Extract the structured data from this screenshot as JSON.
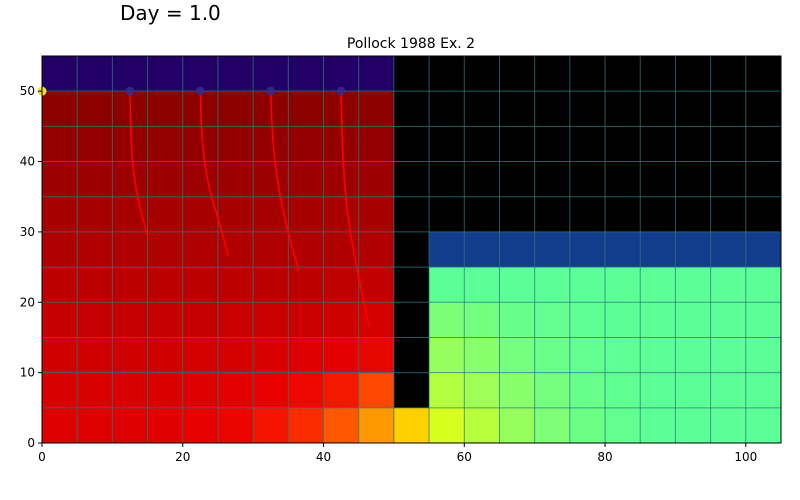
{
  "chart_data": {
    "type": "heatmap",
    "suptitle": "Day = 1.0",
    "title": "Pollock 1988 Ex. 2",
    "xlabel": "",
    "ylabel": "",
    "xlim": [
      0,
      105
    ],
    "ylim": [
      0,
      55
    ],
    "xticks": [
      0,
      20,
      40,
      60,
      80,
      100
    ],
    "yticks": [
      0,
      10,
      20,
      30,
      40,
      50
    ],
    "cell_size": 5,
    "grid": true,
    "grid_color": "#2a7a80",
    "colors": {
      "inactive": "#000000",
      "top_left_layer": "#220066",
      "right_layer": "#143c8c",
      "pathline": "#ff0000",
      "start_marker": "#3a2a8a",
      "source_marker": "#f0e040"
    },
    "rows_top_to_bottom": [
      [
        "#220066",
        "#220066",
        "#220066",
        "#220066",
        "#220066",
        "#220066",
        "#220066",
        "#220066",
        "#220066",
        "#220066",
        "#000000",
        "#000000",
        "#000000",
        "#000000",
        "#000000",
        "#000000",
        "#000000",
        "#000000",
        "#000000",
        "#000000",
        "#000000"
      ],
      [
        "#8c0000",
        "#8c0000",
        "#8c0000",
        "#8c0000",
        "#8c0000",
        "#8c0000",
        "#8c0000",
        "#8c0000",
        "#8c0000",
        "#8c0000",
        "#000000",
        "#000000",
        "#000000",
        "#000000",
        "#000000",
        "#000000",
        "#000000",
        "#000000",
        "#000000",
        "#000000",
        "#000000"
      ],
      [
        "#940000",
        "#940000",
        "#940000",
        "#940000",
        "#940000",
        "#940000",
        "#940000",
        "#940000",
        "#940000",
        "#940000",
        "#000000",
        "#000000",
        "#000000",
        "#000000",
        "#000000",
        "#000000",
        "#000000",
        "#000000",
        "#000000",
        "#000000",
        "#000000"
      ],
      [
        "#9c0000",
        "#9c0000",
        "#9c0000",
        "#9c0000",
        "#9c0000",
        "#9c0000",
        "#9c0000",
        "#9c0000",
        "#9c0000",
        "#9c0000",
        "#000000",
        "#000000",
        "#000000",
        "#000000",
        "#000000",
        "#000000",
        "#000000",
        "#000000",
        "#000000",
        "#000000",
        "#000000"
      ],
      [
        "#a60000",
        "#a60000",
        "#a60000",
        "#a60000",
        "#a60000",
        "#a60000",
        "#a60000",
        "#a60000",
        "#a60000",
        "#a60000",
        "#000000",
        "#000000",
        "#000000",
        "#000000",
        "#000000",
        "#000000",
        "#000000",
        "#000000",
        "#000000",
        "#000000",
        "#000000"
      ],
      [
        "#b00000",
        "#b00000",
        "#b00000",
        "#b00000",
        "#b00000",
        "#b00000",
        "#b00000",
        "#b00000",
        "#b00000",
        "#b20000",
        "#000000",
        "#143c8c",
        "#143c8c",
        "#143c8c",
        "#143c8c",
        "#143c8c",
        "#143c8c",
        "#143c8c",
        "#143c8c",
        "#143c8c",
        "#143c8c"
      ],
      [
        "#bc0000",
        "#bc0000",
        "#bc0000",
        "#bc0000",
        "#bc0000",
        "#bc0000",
        "#bc0000",
        "#bc0000",
        "#be0000",
        "#c20000",
        "#000000",
        "#5cff96",
        "#5cff96",
        "#5cff96",
        "#5cff96",
        "#5cff96",
        "#5cff96",
        "#5cff96",
        "#5cff96",
        "#5cff96",
        "#5cff96"
      ],
      [
        "#c60000",
        "#c60000",
        "#c60000",
        "#c60000",
        "#c60000",
        "#c80000",
        "#c80000",
        "#ca0000",
        "#ce0000",
        "#d40000",
        "#000000",
        "#7cff76",
        "#72ff80",
        "#68ff8a",
        "#62ff90",
        "#5eff94",
        "#5cff96",
        "#5cff96",
        "#5cff96",
        "#5cff96",
        "#5cff96"
      ],
      [
        "#d00000",
        "#d00000",
        "#d00000",
        "#d00000",
        "#d20000",
        "#d40000",
        "#d80000",
        "#dc0000",
        "#e20000",
        "#e60800",
        "#000000",
        "#96ff5e",
        "#88ff6c",
        "#76ff7e",
        "#6aff88",
        "#62ff90",
        "#5eff94",
        "#5cff96",
        "#5cff96",
        "#5cff96",
        "#5cff96"
      ],
      [
        "#d80000",
        "#d80000",
        "#d80000",
        "#da0000",
        "#de0000",
        "#e20000",
        "#e80000",
        "#ee0800",
        "#f41800",
        "#ff4800",
        "#000000",
        "#b4ff40",
        "#a0ff54",
        "#88ff6c",
        "#76ff7e",
        "#68ff8a",
        "#60ff92",
        "#5cff96",
        "#5cff96",
        "#5cff96",
        "#5cff96"
      ],
      [
        "#dc0000",
        "#dc0000",
        "#de0000",
        "#e00000",
        "#e60000",
        "#ec0400",
        "#f41400",
        "#fc2c00",
        "#ff5800",
        "#ff9800",
        "#ffd000",
        "#d8ff20",
        "#b8ff3c",
        "#96ff5e",
        "#7eff76",
        "#6cff86",
        "#62ff90",
        "#5cff96",
        "#5cff96",
        "#5cff96",
        "#5cff96"
      ]
    ],
    "pathlines": [
      {
        "start": [
          12.5,
          50
        ],
        "points": [
          [
            12.5,
            50
          ],
          [
            12.6,
            44
          ],
          [
            13.0,
            38
          ],
          [
            14.0,
            33
          ],
          [
            15.0,
            29.5
          ]
        ]
      },
      {
        "start": [
          22.5,
          50
        ],
        "points": [
          [
            22.5,
            50
          ],
          [
            22.7,
            43
          ],
          [
            23.5,
            37
          ],
          [
            25.0,
            32
          ],
          [
            26.5,
            26.5
          ]
        ]
      },
      {
        "start": [
          32.5,
          50
        ],
        "points": [
          [
            32.5,
            50
          ],
          [
            32.8,
            42
          ],
          [
            33.8,
            35
          ],
          [
            35.2,
            29
          ],
          [
            36.5,
            24.5
          ]
        ]
      },
      {
        "start": [
          42.5,
          50
        ],
        "points": [
          [
            42.5,
            50
          ],
          [
            42.7,
            41
          ],
          [
            43.3,
            33
          ],
          [
            44.5,
            26
          ],
          [
            45.5,
            21
          ],
          [
            46.5,
            16.5
          ]
        ]
      }
    ],
    "source_point": [
      0,
      50
    ]
  }
}
